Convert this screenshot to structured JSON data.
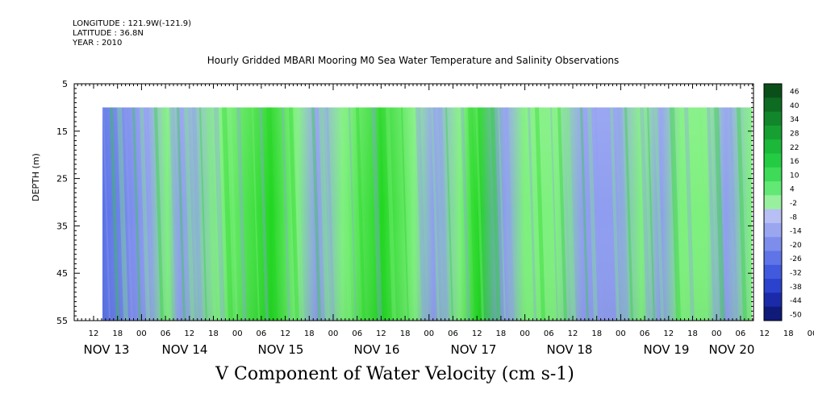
{
  "header": {
    "longitude": "LONGITUDE : 121.9W(-121.9)",
    "latitude": "LATITUDE : 36.8N",
    "year": "YEAR : 2010"
  },
  "chart_data": {
    "type": "heatmap",
    "title": "Hourly Gridded MBARI Mooring M0 Sea Water Temperature and Salinity Observations",
    "xlabel": "V Component of Water Velocity (cm s-1)",
    "ylabel": "DEPTH (m)",
    "ylim": [
      55,
      5
    ],
    "y_ticks": [
      5,
      15,
      25,
      35,
      45,
      55
    ],
    "x_hour_ticks": [
      "12",
      "18",
      "00",
      "06",
      "12",
      "18",
      "00",
      "06",
      "12",
      "18",
      "00",
      "06",
      "12",
      "18",
      "00",
      "06",
      "12",
      "18",
      "00",
      "06",
      "12",
      "18",
      "00",
      "06",
      "12",
      "18",
      "00",
      "06",
      "12",
      "18",
      "00",
      "06"
    ],
    "x_day_labels": [
      "NOV 13",
      "NOV 14",
      "NOV 15",
      "NOV 16",
      "NOV 17",
      "NOV 18",
      "NOV 19",
      "NOV 20"
    ],
    "data_range": {
      "time_start": "NOV 13 14",
      "time_end": "NOV 20 08",
      "depth_min": 10,
      "depth_max": 55
    },
    "colorbar_levels": [
      46,
      40,
      34,
      28,
      22,
      16,
      10,
      4,
      -2,
      -8,
      -14,
      -20,
      -26,
      -32,
      -38,
      -44,
      -50
    ],
    "colorbar_range": [
      -50,
      50
    ],
    "colors": {
      "negative": "#8f9df0",
      "positive": "#7ef07e",
      "strong_positive": "#22d622",
      "strong_negative": "#5a72e6"
    }
  }
}
